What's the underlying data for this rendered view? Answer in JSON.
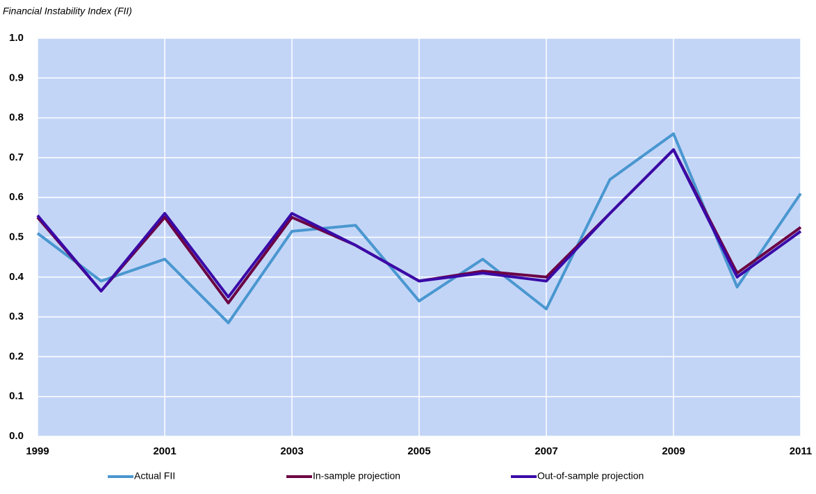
{
  "chart_data": {
    "type": "line",
    "title": "Financial Instability Index (FII)",
    "x": [
      1999,
      2000,
      2001,
      2002,
      2003,
      2004,
      2005,
      2006,
      2007,
      2008,
      2009,
      2010,
      2011
    ],
    "xlim": [
      1999,
      2011
    ],
    "xticks": [
      1999,
      2001,
      2003,
      2005,
      2007,
      2009,
      2011
    ],
    "ylim": [
      0,
      1
    ],
    "yticks": [
      {
        "value": 0,
        "label": "0.0"
      },
      0.1,
      0.2,
      0.3,
      0.4,
      0.5,
      0.6,
      0.7,
      0.8,
      0.9,
      {
        "value": 1,
        "label": "1.0"
      }
    ],
    "grid": true,
    "legend": "bottom",
    "series": [
      {
        "name": "Actual FII",
        "color": "#4a97d0",
        "values": [
          0.51,
          0.39,
          0.445,
          0.285,
          0.515,
          0.53,
          0.34,
          0.445,
          0.32,
          0.645,
          0.76,
          0.375,
          0.61
        ]
      },
      {
        "name": "In-sample projection",
        "color": "#6b0043",
        "values": [
          0.55,
          0.365,
          0.55,
          0.335,
          0.55,
          0.48,
          0.39,
          0.415,
          0.4,
          0.56,
          0.72,
          0.41,
          0.525
        ]
      },
      {
        "name": "Out-of-sample projection",
        "color": "#3a0aa8",
        "values": [
          0.555,
          0.365,
          0.56,
          0.35,
          0.56,
          0.48,
          0.39,
          0.41,
          0.39,
          0.56,
          0.72,
          0.4,
          0.515
        ]
      }
    ]
  }
}
